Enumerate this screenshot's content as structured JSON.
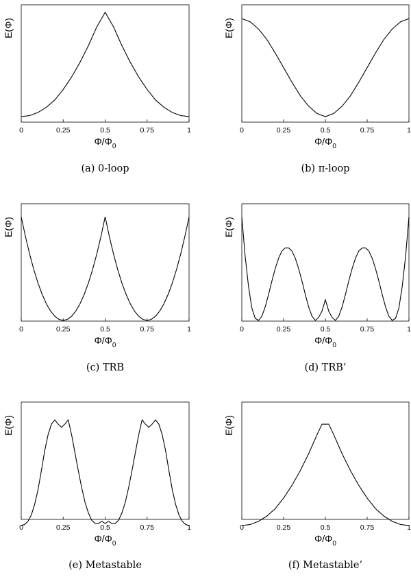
{
  "chart_data": [
    {
      "type": "line",
      "caption": "(a) 0-loop",
      "ylabel": "E(Φ)",
      "xlabel": "Φ/Φ",
      "xlabel_sub": "0",
      "xlim": [
        0,
        1
      ],
      "xticks": [
        "0",
        "0.25",
        "0.5",
        "0.75",
        "1"
      ],
      "x": [
        0,
        0.05,
        0.1,
        0.15,
        0.2,
        0.25,
        0.3,
        0.35,
        0.4,
        0.45,
        0.5,
        0.55,
        0.6,
        0.65,
        0.7,
        0.75,
        0.8,
        0.85,
        0.9,
        0.95,
        1
      ],
      "y": [
        0.0,
        0.01,
        0.04,
        0.09,
        0.16,
        0.26,
        0.38,
        0.52,
        0.68,
        0.86,
        1.0,
        0.86,
        0.68,
        0.52,
        0.38,
        0.26,
        0.16,
        0.09,
        0.04,
        0.01,
        0.0
      ]
    },
    {
      "type": "line",
      "caption": "(b) π-loop",
      "ylabel": "E(Φ)",
      "xlabel": "Φ/Φ",
      "xlabel_sub": "0",
      "xlim": [
        0,
        1
      ],
      "xticks": [
        "0",
        "0.25",
        "0.5",
        "0.75",
        "1"
      ],
      "x": [
        0,
        0.05,
        0.1,
        0.15,
        0.2,
        0.25,
        0.3,
        0.35,
        0.4,
        0.45,
        0.5,
        0.55,
        0.6,
        0.65,
        0.7,
        0.75,
        0.8,
        0.85,
        0.9,
        0.95,
        1
      ],
      "y": [
        0.94,
        0.91,
        0.84,
        0.74,
        0.61,
        0.47,
        0.33,
        0.2,
        0.1,
        0.03,
        0.0,
        0.03,
        0.1,
        0.2,
        0.33,
        0.47,
        0.61,
        0.74,
        0.84,
        0.91,
        0.94
      ]
    },
    {
      "type": "line",
      "caption": "(c) TRB",
      "ylabel": "E(Φ)",
      "xlabel": "Φ/Φ",
      "xlabel_sub": "0",
      "xlim": [
        0,
        1
      ],
      "xticks": [
        "0",
        "0.25",
        "0.5",
        "0.75",
        "1"
      ],
      "x": [
        0,
        0.025,
        0.05,
        0.075,
        0.1,
        0.125,
        0.15,
        0.175,
        0.2,
        0.225,
        0.25,
        0.275,
        0.3,
        0.325,
        0.35,
        0.375,
        0.4,
        0.425,
        0.45,
        0.475,
        0.5,
        0.525,
        0.55,
        0.575,
        0.6,
        0.625,
        0.65,
        0.675,
        0.7,
        0.725,
        0.75,
        0.775,
        0.8,
        0.825,
        0.85,
        0.875,
        0.9,
        0.925,
        0.95,
        0.975,
        1
      ],
      "y": [
        1.0,
        0.81,
        0.64,
        0.49,
        0.36,
        0.25,
        0.16,
        0.09,
        0.04,
        0.01,
        0.0,
        0.01,
        0.04,
        0.09,
        0.16,
        0.25,
        0.36,
        0.49,
        0.64,
        0.81,
        1.0,
        0.81,
        0.64,
        0.49,
        0.36,
        0.25,
        0.16,
        0.09,
        0.04,
        0.01,
        0.0,
        0.01,
        0.04,
        0.09,
        0.16,
        0.25,
        0.36,
        0.49,
        0.64,
        0.81,
        1.0
      ]
    },
    {
      "type": "line",
      "caption": "(d) TRB’",
      "ylabel": "E(Φ)",
      "xlabel": "Φ/Φ",
      "xlabel_sub": "0",
      "xlim": [
        0,
        1
      ],
      "xticks": [
        "0",
        "0.25",
        "0.5",
        "0.75",
        "1"
      ],
      "x": [
        0,
        0.02,
        0.04,
        0.06,
        0.08,
        0.1,
        0.12,
        0.14,
        0.16,
        0.18,
        0.2,
        0.22,
        0.24,
        0.26,
        0.28,
        0.3,
        0.32,
        0.34,
        0.36,
        0.38,
        0.4,
        0.42,
        0.44,
        0.46,
        0.48,
        0.5,
        0.52,
        0.54,
        0.56,
        0.58,
        0.6,
        0.62,
        0.64,
        0.66,
        0.68,
        0.7,
        0.72,
        0.74,
        0.76,
        0.78,
        0.8,
        0.82,
        0.84,
        0.86,
        0.88,
        0.9,
        0.92,
        0.94,
        0.96,
        0.98,
        1
      ],
      "y": [
        1.0,
        0.62,
        0.33,
        0.12,
        0.02,
        0.0,
        0.04,
        0.13,
        0.25,
        0.38,
        0.5,
        0.6,
        0.67,
        0.7,
        0.7,
        0.67,
        0.6,
        0.5,
        0.38,
        0.25,
        0.13,
        0.04,
        0.0,
        0.03,
        0.09,
        0.2,
        0.09,
        0.03,
        0.0,
        0.04,
        0.13,
        0.25,
        0.38,
        0.5,
        0.6,
        0.67,
        0.7,
        0.7,
        0.67,
        0.6,
        0.5,
        0.38,
        0.25,
        0.13,
        0.04,
        0.0,
        0.02,
        0.12,
        0.33,
        0.62,
        1.0
      ]
    },
    {
      "type": "line",
      "caption": "(e) Metastable",
      "ylabel": "E(Φ)",
      "xlabel": "Φ/Φ",
      "xlabel_sub": "0",
      "xlim": [
        0,
        1
      ],
      "xticks": [
        "0",
        "0.25",
        "0.5",
        "0.75",
        "1"
      ],
      "x": [
        0,
        0.02,
        0.04,
        0.06,
        0.08,
        0.1,
        0.12,
        0.14,
        0.16,
        0.18,
        0.2,
        0.22,
        0.24,
        0.26,
        0.28,
        0.3,
        0.32,
        0.34,
        0.36,
        0.38,
        0.4,
        0.42,
        0.44,
        0.46,
        0.48,
        0.5,
        0.52,
        0.54,
        0.56,
        0.58,
        0.6,
        0.62,
        0.64,
        0.66,
        0.68,
        0.7,
        0.72,
        0.74,
        0.76,
        0.78,
        0.8,
        0.82,
        0.84,
        0.86,
        0.88,
        0.9,
        0.92,
        0.94,
        0.96,
        0.98,
        1
      ],
      "y": [
        0.0,
        0.01,
        0.04,
        0.1,
        0.2,
        0.34,
        0.52,
        0.71,
        0.86,
        0.96,
        1.0,
        0.96,
        0.93,
        0.96,
        1.0,
        0.86,
        0.69,
        0.52,
        0.36,
        0.22,
        0.12,
        0.05,
        0.02,
        0.02,
        0.04,
        0.02,
        0.04,
        0.02,
        0.02,
        0.05,
        0.12,
        0.22,
        0.36,
        0.52,
        0.69,
        0.86,
        1.0,
        0.96,
        0.93,
        0.96,
        1.0,
        0.96,
        0.86,
        0.71,
        0.52,
        0.34,
        0.2,
        0.1,
        0.04,
        0.01,
        0.0
      ]
    },
    {
      "type": "line",
      "caption": "(f) Metastable’",
      "ylabel": "E(Φ)",
      "xlabel": "Φ/Φ",
      "xlabel_sub": "0",
      "xlim": [
        0,
        1
      ],
      "xticks": [
        "0",
        "0.25",
        "0.5",
        "0.75",
        "1"
      ],
      "x": [
        0,
        0.05,
        0.1,
        0.15,
        0.2,
        0.25,
        0.3,
        0.35,
        0.4,
        0.45,
        0.48,
        0.5,
        0.52,
        0.55,
        0.6,
        0.65,
        0.7,
        0.75,
        0.8,
        0.85,
        0.9,
        0.95,
        1
      ],
      "y": [
        0.0,
        0.01,
        0.04,
        0.09,
        0.16,
        0.26,
        0.38,
        0.52,
        0.68,
        0.86,
        0.96,
        0.96,
        0.96,
        0.86,
        0.68,
        0.52,
        0.38,
        0.26,
        0.16,
        0.09,
        0.04,
        0.01,
        0.0
      ]
    }
  ]
}
